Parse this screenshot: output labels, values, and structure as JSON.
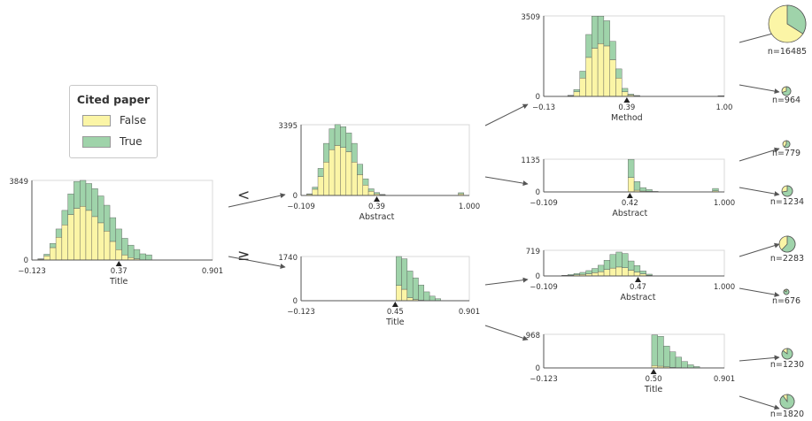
{
  "colors": {
    "false": "#fbf5a6",
    "true": "#9fd3aa",
    "bar_edge": "#555555",
    "axis": "#555555"
  },
  "legend": {
    "title": "Cited paper",
    "items": [
      {
        "label": "False",
        "color": "#fbf5a6"
      },
      {
        "label": "True",
        "color": "#9fd3aa"
      }
    ]
  },
  "branch_labels": {
    "less": "<",
    "greater_equal": "≥"
  },
  "chart_data": [
    {
      "id": "root",
      "type": "bar",
      "feature": "Title",
      "ymax_label": "3849",
      "ymin_label": "0",
      "xmin_label": "−0.123",
      "xmax_label": "0.901",
      "split_label": "0.37",
      "xrange": [
        -0.123,
        0.901
      ],
      "split": 0.37,
      "ymax": 3849,
      "bin_start": -0.123,
      "bin_width": 0.034,
      "false": [
        0,
        40,
        200,
        600,
        1100,
        1700,
        2200,
        2500,
        2600,
        2400,
        2100,
        1800,
        1400,
        900,
        500,
        250,
        120,
        60,
        0,
        0,
        0,
        0,
        0
      ],
      "true": [
        0,
        20,
        80,
        200,
        400,
        700,
        1000,
        1300,
        1250,
        1300,
        1350,
        1300,
        1250,
        1150,
        1000,
        800,
        600,
        450,
        300,
        250,
        0,
        0,
        0
      ]
    },
    {
      "id": "left",
      "type": "bar",
      "feature": "Abstract",
      "ymax_label": "3395",
      "ymin_label": "0",
      "xmin_label": "−0.109",
      "xmax_label": "1.000",
      "split_label": "0.39",
      "xrange": [
        -0.109,
        1.0
      ],
      "split": 0.39,
      "ymax": 3395,
      "bin_start": -0.109,
      "bin_width": 0.037,
      "false": [
        0,
        50,
        300,
        900,
        1600,
        2200,
        2400,
        2300,
        2100,
        1600,
        1000,
        500,
        200,
        80,
        30,
        0,
        0,
        0,
        0,
        0,
        0,
        0,
        0,
        0,
        0,
        0,
        0,
        0,
        80,
        0
      ],
      "true": [
        0,
        30,
        100,
        400,
        900,
        1000,
        1000,
        1000,
        900,
        900,
        500,
        300,
        120,
        60,
        20,
        0,
        0,
        0,
        0,
        0,
        0,
        0,
        0,
        0,
        0,
        0,
        0,
        0,
        50,
        0
      ]
    },
    {
      "id": "right",
      "type": "bar",
      "feature": "Title",
      "ymax_label": "1740",
      "ymin_label": "0",
      "xmin_label": "−0.123",
      "xmax_label": "0.901",
      "split_label": "0.45",
      "xrange": [
        -0.123,
        0.901
      ],
      "split": 0.45,
      "ymax": 1740,
      "bin_start": -0.123,
      "bin_width": 0.034,
      "false": [
        0,
        0,
        0,
        0,
        0,
        0,
        0,
        0,
        0,
        0,
        0,
        0,
        0,
        0,
        0,
        0,
        0,
        600,
        450,
        120,
        50,
        20,
        0,
        0,
        0,
        0,
        0,
        0,
        0,
        0,
        0
      ],
      "true": [
        0,
        0,
        0,
        0,
        0,
        0,
        0,
        0,
        0,
        0,
        0,
        0,
        0,
        0,
        0,
        0,
        0,
        1140,
        1200,
        1050,
        850,
        600,
        350,
        180,
        80,
        0,
        0,
        0,
        0,
        0,
        0
      ]
    },
    {
      "id": "ll",
      "type": "bar",
      "feature": "Method",
      "ymax_label": "3509",
      "ymin_label": "0",
      "xmin_label": "−0.13",
      "xmax_label": "1.00",
      "split_label": "0.39",
      "xrange": [
        -0.13,
        1.0
      ],
      "split": 0.39,
      "ymax": 3509,
      "bin_start": -0.13,
      "bin_width": 0.0376,
      "false": [
        0,
        0,
        0,
        0,
        30,
        200,
        800,
        1700,
        2100,
        2300,
        2200,
        1600,
        800,
        200,
        60,
        20,
        0,
        0,
        0,
        0,
        0,
        0,
        0,
        0,
        0,
        0,
        0,
        0,
        0,
        20
      ],
      "true": [
        0,
        0,
        0,
        0,
        20,
        100,
        300,
        1000,
        1400,
        1200,
        1100,
        800,
        400,
        150,
        40,
        20,
        0,
        0,
        0,
        0,
        0,
        0,
        0,
        0,
        0,
        0,
        0,
        0,
        0,
        10
      ]
    },
    {
      "id": "lr",
      "type": "bar",
      "feature": "Abstract",
      "ymax_label": "1135",
      "ymin_label": "0",
      "xmin_label": "−0.109",
      "xmax_label": "1.000",
      "split_label": "0.42",
      "xrange": [
        -0.109,
        1.0
      ],
      "split": 0.42,
      "ymax": 1135,
      "bin_start": -0.109,
      "bin_width": 0.037,
      "false": [
        0,
        0,
        0,
        0,
        0,
        0,
        0,
        0,
        0,
        0,
        0,
        0,
        0,
        0,
        500,
        60,
        30,
        20,
        0,
        0,
        0,
        0,
        0,
        0,
        0,
        0,
        0,
        0,
        40,
        0
      ],
      "true": [
        0,
        0,
        0,
        0,
        0,
        0,
        0,
        0,
        0,
        0,
        0,
        0,
        0,
        0,
        630,
        300,
        120,
        60,
        20,
        0,
        0,
        0,
        0,
        0,
        0,
        0,
        0,
        0,
        80,
        0
      ]
    },
    {
      "id": "rl",
      "type": "bar",
      "feature": "Abstract",
      "ymax_label": "719",
      "ymin_label": "0",
      "xmin_label": "−0.109",
      "xmax_label": "1.000",
      "split_label": "0.47",
      "xrange": [
        -0.109,
        1.0
      ],
      "split": 0.47,
      "ymax": 719,
      "bin_start": -0.109,
      "bin_width": 0.037,
      "false": [
        0,
        0,
        0,
        10,
        20,
        30,
        40,
        60,
        90,
        120,
        180,
        220,
        250,
        230,
        160,
        110,
        60,
        20,
        0,
        0,
        0,
        0,
        0,
        0,
        0,
        0,
        0,
        0,
        0,
        0
      ],
      "true": [
        0,
        0,
        0,
        10,
        20,
        40,
        60,
        90,
        120,
        180,
        260,
        380,
        420,
        400,
        260,
        180,
        80,
        30,
        0,
        0,
        0,
        0,
        0,
        0,
        0,
        0,
        0,
        0,
        0,
        0
      ]
    },
    {
      "id": "rr",
      "type": "bar",
      "feature": "Title",
      "ymax_label": "968",
      "ymin_label": "0",
      "xmin_label": "−0.123",
      "xmax_label": "0.901",
      "split_label": "0.50",
      "xrange": [
        -0.123,
        0.901
      ],
      "split": 0.5,
      "ymax": 968,
      "bin_start": -0.123,
      "bin_width": 0.034,
      "false": [
        0,
        0,
        0,
        0,
        0,
        0,
        0,
        0,
        0,
        0,
        0,
        0,
        0,
        0,
        0,
        0,
        0,
        0,
        70,
        50,
        30,
        15,
        10,
        5,
        0,
        0,
        0,
        0,
        0,
        0,
        0
      ],
      "true": [
        0,
        0,
        0,
        0,
        0,
        0,
        0,
        0,
        0,
        0,
        0,
        0,
        0,
        0,
        0,
        0,
        0,
        0,
        880,
        860,
        600,
        450,
        300,
        180,
        90,
        40,
        0,
        0,
        0,
        0,
        0
      ]
    }
  ],
  "leaves": [
    {
      "id": "leaf1",
      "label": "n=16485",
      "true_fraction": 0.34
    },
    {
      "id": "leaf2",
      "label": "n=964",
      "true_fraction": 0.7
    },
    {
      "id": "leaf3",
      "label": "n=779",
      "true_fraction": 0.6
    },
    {
      "id": "leaf4",
      "label": "n=1234",
      "true_fraction": 0.72
    },
    {
      "id": "leaf5",
      "label": "n=2283",
      "true_fraction": 0.62
    },
    {
      "id": "leaf6",
      "label": "n=676",
      "true_fraction": 0.85
    },
    {
      "id": "leaf7",
      "label": "n=1230",
      "true_fraction": 0.85
    },
    {
      "id": "leaf8",
      "label": "n=1820",
      "true_fraction": 0.9
    }
  ]
}
